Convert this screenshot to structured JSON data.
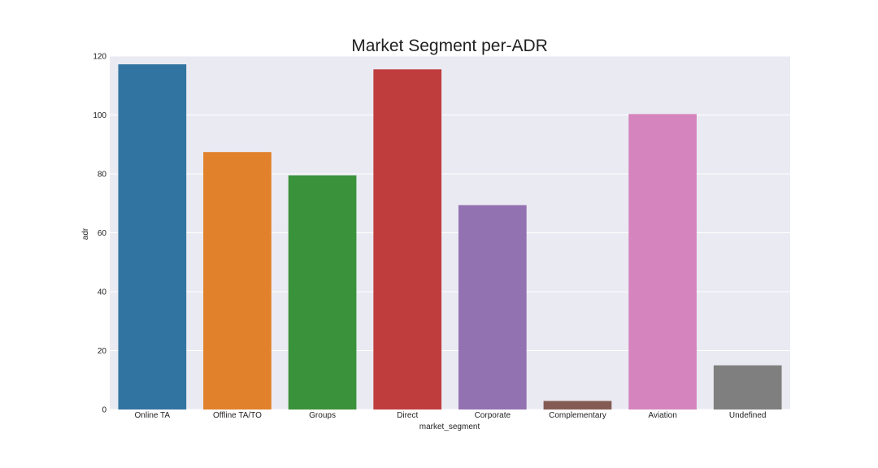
{
  "chart_data": {
    "type": "bar",
    "title": "Market Segment per-ADR",
    "xlabel": "market_segment",
    "ylabel": "adr",
    "categories": [
      "Online TA",
      "Offline TA/TO",
      "Groups",
      "Direct",
      "Corporate",
      "Complementary",
      "Aviation",
      "Undefined"
    ],
    "values": [
      117.2,
      87.4,
      79.5,
      115.5,
      69.4,
      2.9,
      100.3,
      15.0
    ],
    "colors": [
      "#3274a1",
      "#e1812c",
      "#3a923a",
      "#c03d3e",
      "#9372b2",
      "#845b53",
      "#d684bd",
      "#7f7f7f"
    ],
    "ylim": [
      0,
      120
    ],
    "yticks": [
      0,
      20,
      40,
      60,
      80,
      100,
      120
    ],
    "grid": true,
    "background": "#eaeaf2",
    "grid_color": "#ffffff"
  }
}
